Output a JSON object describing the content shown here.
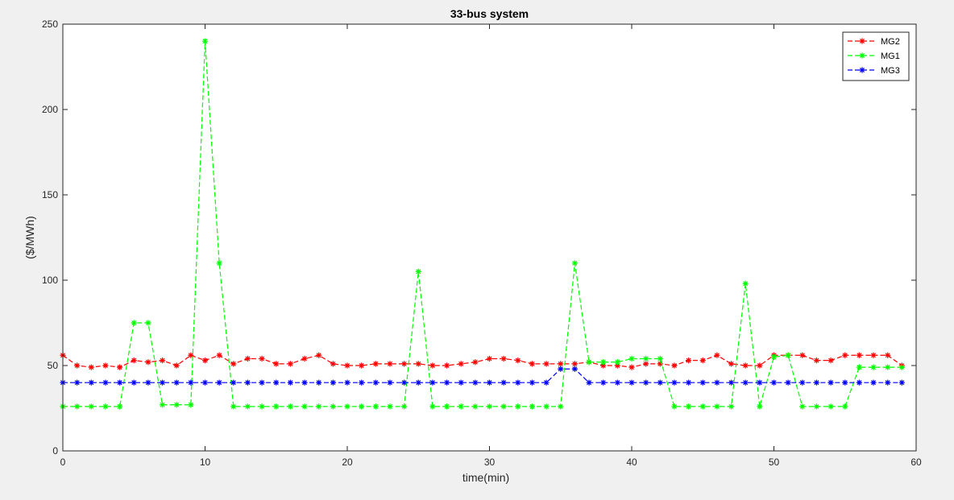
{
  "chart_data": {
    "type": "line",
    "title": "33-bus system",
    "xlabel": "time(min)",
    "ylabel": "($/MWh)",
    "xlim": [
      0,
      60
    ],
    "ylim": [
      0,
      250
    ],
    "xticks": [
      0,
      10,
      20,
      30,
      40,
      50,
      60
    ],
    "yticks": [
      0,
      50,
      100,
      150,
      200,
      250
    ],
    "grid": false,
    "legend_position": "top-right",
    "x": [
      0,
      1,
      2,
      3,
      4,
      5,
      6,
      7,
      8,
      9,
      10,
      11,
      12,
      13,
      14,
      15,
      16,
      17,
      18,
      19,
      20,
      21,
      22,
      23,
      24,
      25,
      26,
      27,
      28,
      29,
      30,
      31,
      32,
      33,
      34,
      35,
      36,
      37,
      38,
      39,
      40,
      41,
      42,
      43,
      44,
      45,
      46,
      47,
      48,
      49,
      50,
      51,
      52,
      53,
      54,
      55,
      56,
      57,
      58,
      59
    ],
    "series": [
      {
        "name": "MG2",
        "color": "#ff0000",
        "values": [
          56,
          50,
          49,
          50,
          49,
          53,
          52,
          53,
          50,
          56,
          53,
          56,
          51,
          54,
          54,
          51,
          51,
          54,
          56,
          51,
          50,
          50,
          51,
          51,
          51,
          51,
          50,
          50,
          51,
          52,
          54,
          54,
          53,
          51,
          51,
          51,
          51,
          52,
          50,
          50,
          49,
          51,
          51,
          50,
          53,
          53,
          56,
          51,
          50,
          50,
          56,
          56,
          56,
          53,
          53,
          56,
          56,
          56,
          56,
          50
        ]
      },
      {
        "name": "MG1",
        "color": "#00ff00",
        "values": [
          26,
          26,
          26,
          26,
          26,
          75,
          75,
          27,
          27,
          27,
          240,
          110,
          26,
          26,
          26,
          26,
          26,
          26,
          26,
          26,
          26,
          26,
          26,
          26,
          26,
          105,
          26,
          26,
          26,
          26,
          26,
          26,
          26,
          26,
          26,
          26,
          110,
          52,
          52,
          52,
          54,
          54,
          54,
          26,
          26,
          26,
          26,
          26,
          98,
          26,
          55,
          56,
          26,
          26,
          26,
          26,
          49,
          49,
          49,
          49
        ]
      },
      {
        "name": "MG3",
        "color": "#0000ff",
        "values": [
          40,
          40,
          40,
          40,
          40,
          40,
          40,
          40,
          40,
          40,
          40,
          40,
          40,
          40,
          40,
          40,
          40,
          40,
          40,
          40,
          40,
          40,
          40,
          40,
          40,
          40,
          40,
          40,
          40,
          40,
          40,
          40,
          40,
          40,
          40,
          48,
          48,
          40,
          40,
          40,
          40,
          40,
          40,
          40,
          40,
          40,
          40,
          40,
          40,
          40,
          40,
          40,
          40,
          40,
          40,
          40,
          40,
          40,
          40,
          40
        ]
      }
    ]
  }
}
